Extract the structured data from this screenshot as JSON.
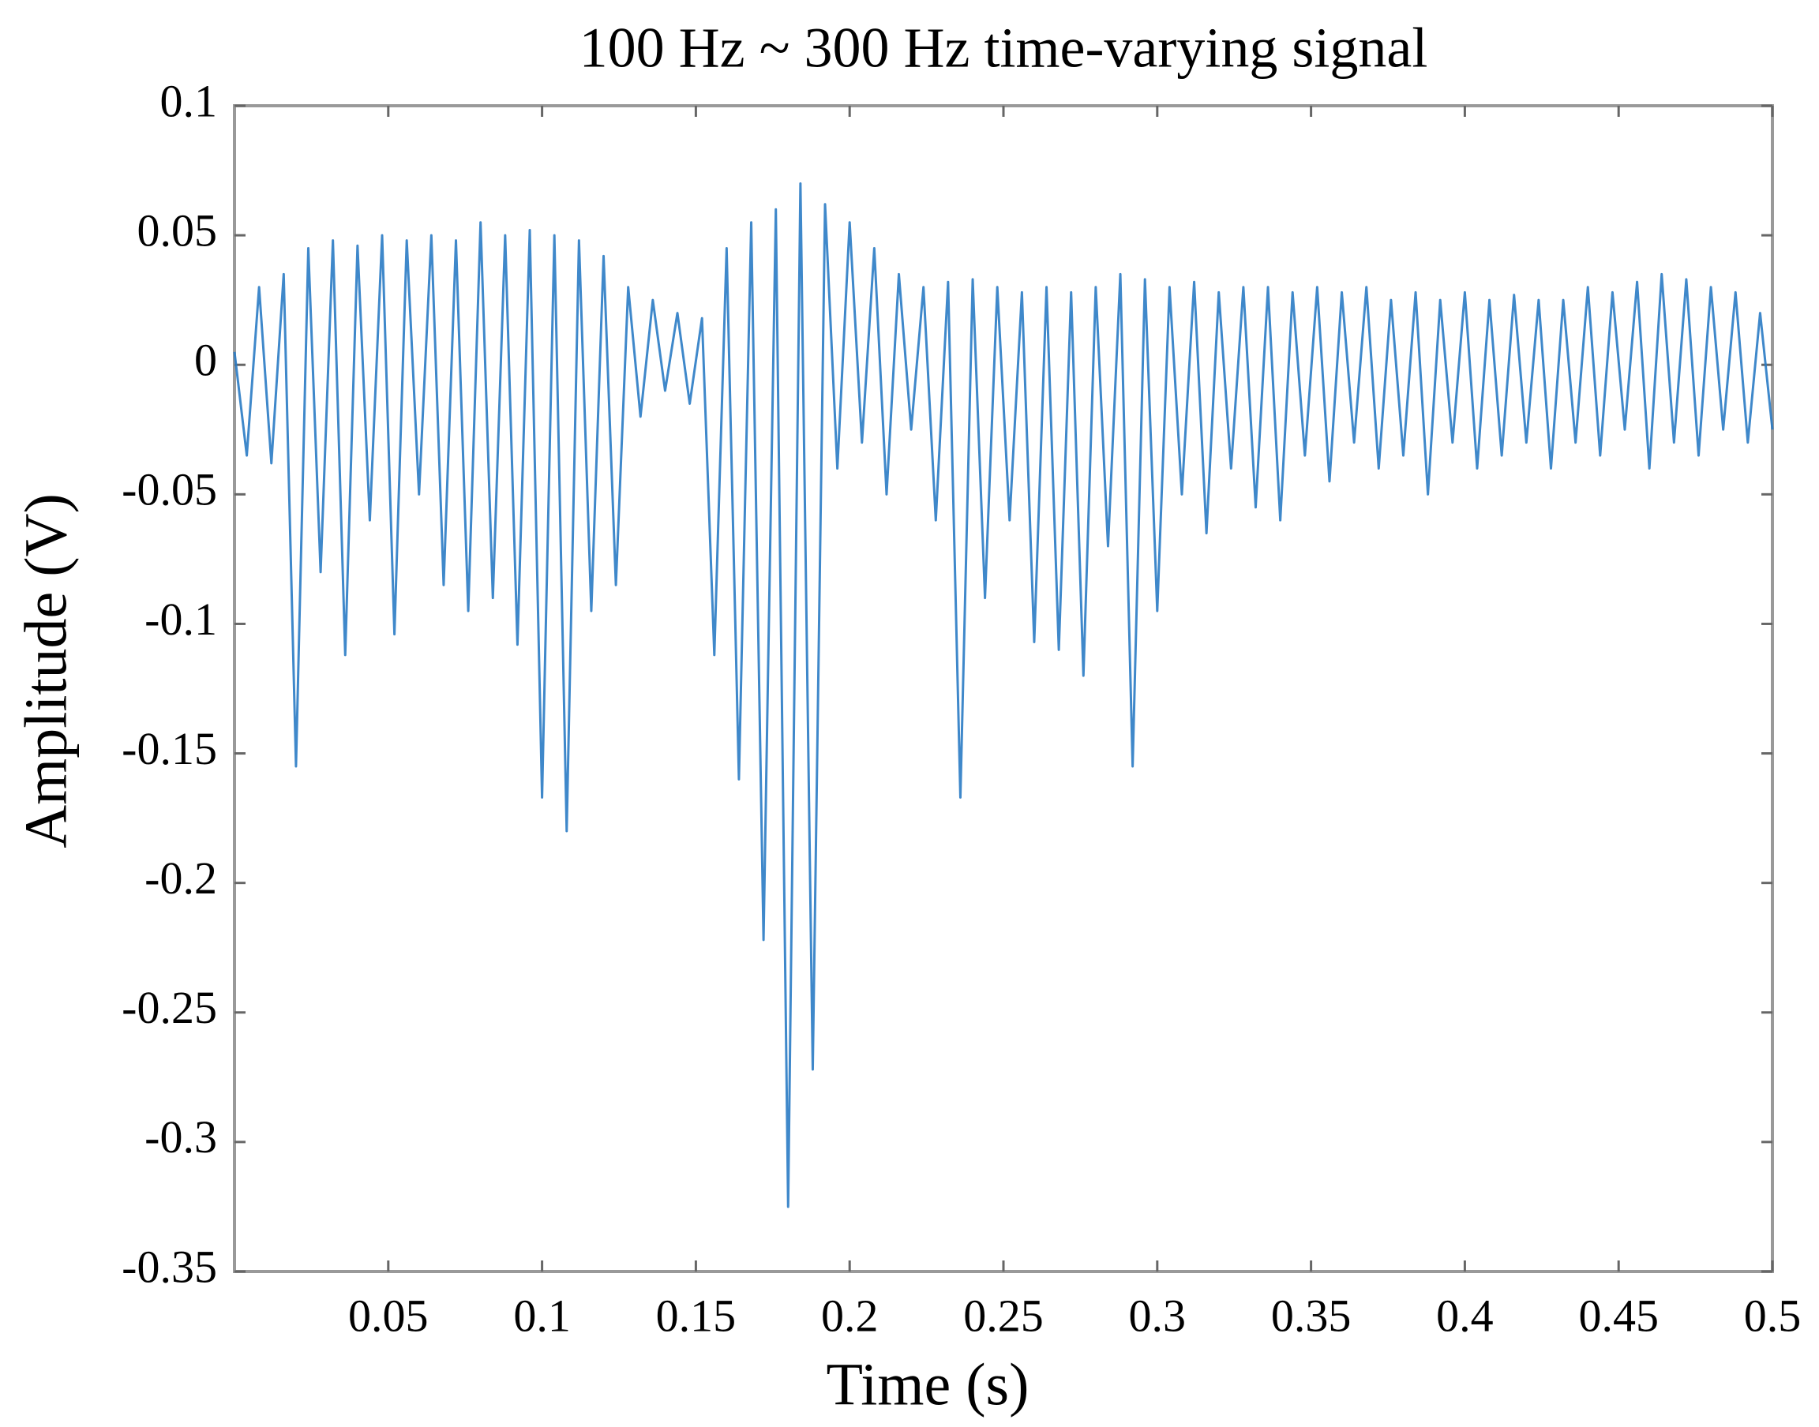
{
  "chart_data": {
    "type": "line",
    "title": "100 Hz ~ 300 Hz time-varying signal",
    "xlabel": "Time (s)",
    "ylabel": "Amplitude (V)",
    "color": "#2a7bc4",
    "grid": false,
    "xlim": [
      0,
      0.5
    ],
    "ylim": [
      -0.35,
      0.1
    ],
    "xticks": [
      0.05,
      0.1,
      0.15,
      0.2,
      0.25,
      0.3,
      0.35,
      0.4,
      0.45,
      0.5
    ],
    "yticks": [
      0.1,
      0.05,
      0,
      -0.05,
      -0.1,
      -0.15,
      -0.2,
      -0.25,
      -0.3,
      -0.35
    ],
    "x": [
      0,
      0.004,
      0.008,
      0.012,
      0.016,
      0.02,
      0.024,
      0.028,
      0.032,
      0.036,
      0.04,
      0.044,
      0.048,
      0.052,
      0.056,
      0.06,
      0.064,
      0.068,
      0.072,
      0.076,
      0.08,
      0.084,
      0.088,
      0.092,
      0.096,
      0.1,
      0.104,
      0.108,
      0.112,
      0.116,
      0.12,
      0.124,
      0.128,
      0.132,
      0.136,
      0.14,
      0.144,
      0.148,
      0.152,
      0.156,
      0.16,
      0.164,
      0.168,
      0.172,
      0.176,
      0.18,
      0.184,
      0.188,
      0.192,
      0.196,
      0.2,
      0.204,
      0.208,
      0.212,
      0.216,
      0.22,
      0.224,
      0.228,
      0.232,
      0.236,
      0.24,
      0.244,
      0.248,
      0.252,
      0.256,
      0.26,
      0.264,
      0.268,
      0.272,
      0.276,
      0.28,
      0.284,
      0.288,
      0.292,
      0.296,
      0.3,
      0.304,
      0.308,
      0.312,
      0.316,
      0.32,
      0.324,
      0.328,
      0.332,
      0.336,
      0.34,
      0.344,
      0.348,
      0.352,
      0.356,
      0.36,
      0.364,
      0.368,
      0.372,
      0.376,
      0.38,
      0.384,
      0.388,
      0.392,
      0.396,
      0.4,
      0.404,
      0.408,
      0.412,
      0.416,
      0.42,
      0.424,
      0.428,
      0.432,
      0.436,
      0.44,
      0.444,
      0.448,
      0.452,
      0.456,
      0.46,
      0.464,
      0.468,
      0.472,
      0.476,
      0.48,
      0.484,
      0.488,
      0.492,
      0.496,
      0.5
    ],
    "values": [
      0.005,
      -0.035,
      0.03,
      -0.038,
      0.035,
      -0.155,
      0.045,
      -0.08,
      0.048,
      -0.112,
      0.046,
      -0.06,
      0.05,
      -0.104,
      0.048,
      -0.05,
      0.05,
      -0.085,
      0.048,
      -0.095,
      0.055,
      -0.09,
      0.05,
      -0.108,
      0.052,
      -0.167,
      0.05,
      -0.18,
      0.048,
      -0.095,
      0.042,
      -0.085,
      0.03,
      -0.02,
      0.025,
      -0.01,
      0.02,
      -0.015,
      0.018,
      -0.112,
      0.045,
      -0.16,
      0.055,
      -0.222,
      0.06,
      -0.325,
      0.07,
      -0.272,
      0.062,
      -0.04,
      0.055,
      -0.03,
      0.045,
      -0.05,
      0.035,
      -0.025,
      0.03,
      -0.06,
      0.032,
      -0.167,
      0.033,
      -0.09,
      0.03,
      -0.06,
      0.028,
      -0.107,
      0.03,
      -0.11,
      0.028,
      -0.12,
      0.03,
      -0.07,
      0.035,
      -0.155,
      0.033,
      -0.095,
      0.03,
      -0.05,
      0.032,
      -0.065,
      0.028,
      -0.04,
      0.03,
      -0.055,
      0.03,
      -0.06,
      0.028,
      -0.035,
      0.03,
      -0.045,
      0.028,
      -0.03,
      0.03,
      -0.04,
      0.025,
      -0.035,
      0.028,
      -0.05,
      0.025,
      -0.03,
      0.028,
      -0.04,
      0.025,
      -0.035,
      0.027,
      -0.03,
      0.025,
      -0.04,
      0.025,
      -0.03,
      0.03,
      -0.035,
      0.028,
      -0.025,
      0.032,
      -0.04,
      0.035,
      -0.03,
      0.033,
      -0.035,
      0.03,
      -0.025,
      0.028,
      -0.03,
      0.02,
      -0.025
    ]
  }
}
